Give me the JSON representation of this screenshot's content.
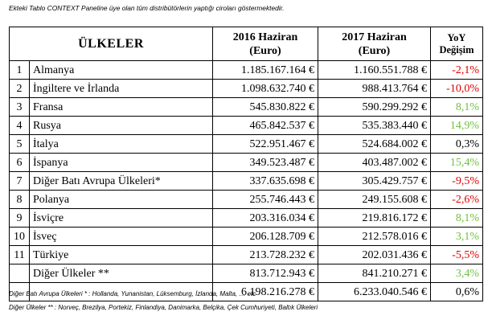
{
  "caption": "Ekteki Tablo CONTEXT Paneline üye olan tüm distribütörlerin yaptığı ciroları göstermektedir.",
  "header": {
    "country": "ÜLKELER",
    "col2016_line1": "2016 Haziran",
    "col2016_line2": "(Euro)",
    "col2017_line1": "2017 Haziran",
    "col2017_line2": "(Euro)",
    "yoy_line1": "YoY",
    "yoy_line2": "Değişim"
  },
  "rows": [
    {
      "num": "1",
      "country": "Almanya",
      "v2016": "1.185.167.164 €",
      "v2017": "1.160.551.788 €",
      "yoy": "-2,1%",
      "color": "#e00000"
    },
    {
      "num": "2",
      "country": "İngiltere ve İrlanda",
      "v2016": "1.098.632.740 €",
      "v2017": "988.413.764 €",
      "yoy": "-10,0%",
      "color": "#e00000"
    },
    {
      "num": "3",
      "country": "Fransa",
      "v2016": "545.830.822 €",
      "v2017": "590.299.292 €",
      "yoy": "8,1%",
      "color": "#70c040"
    },
    {
      "num": "4",
      "country": "Rusya",
      "v2016": "465.842.537 €",
      "v2017": "535.383.440 €",
      "yoy": "14,9%",
      "color": "#70c040"
    },
    {
      "num": "5",
      "country": "İtalya",
      "v2016": "522.951.467 €",
      "v2017": "524.684.002 €",
      "yoy": "0,3%",
      "color": "#000000"
    },
    {
      "num": "6",
      "country": "İspanya",
      "v2016": "349.523.487 €",
      "v2017": "403.487.002 €",
      "yoy": "15,4%",
      "color": "#70c040"
    },
    {
      "num": "7",
      "country": "Diğer Batı Avrupa Ülkeleri*",
      "v2016": "337.635.698 €",
      "v2017": "305.429.757 €",
      "yoy": "-9,5%",
      "color": "#e00000"
    },
    {
      "num": "8",
      "country": "Polanya",
      "v2016": "255.746.443 €",
      "v2017": "249.155.608 €",
      "yoy": "-2,6%",
      "color": "#e00000"
    },
    {
      "num": "9",
      "country": "İsviçre",
      "v2016": "203.316.034 €",
      "v2017": "219.816.172 €",
      "yoy": "8,1%",
      "color": "#70c040"
    },
    {
      "num": "10",
      "country": "İsveç",
      "v2016": "206.128.709 €",
      "v2017": "212.578.016 €",
      "yoy": "3,1%",
      "color": "#70c040"
    },
    {
      "num": "11",
      "country": "Türkiye",
      "v2016": "213.728.232 €",
      "v2017": "202.031.436 €",
      "yoy": "-5,5%",
      "color": "#e00000"
    },
    {
      "num": "",
      "country": "Diğer Ülkeler **",
      "v2016": "813.712.943 €",
      "v2017": "841.210.271 €",
      "yoy": "3,4%",
      "color": "#70c040"
    }
  ],
  "total": {
    "v2016": "6.198.216.278 €",
    "v2017": "6.233.040.546 €",
    "yoy": "0,6%",
    "color": "#000000"
  },
  "footnotes": [
    "Diğer Batı Avrupa Ülkeleri * : Hollanda, Yunanistan, Lüksemburg, İzlanda, Malta, … etc",
    "Diğer Ülkeler ** : Norveç, Brezilya, Portekiz, Finlandiya, Danimarka, Belçika, Çek Cumhuriyeti, Baltık Ülkeleri"
  ]
}
